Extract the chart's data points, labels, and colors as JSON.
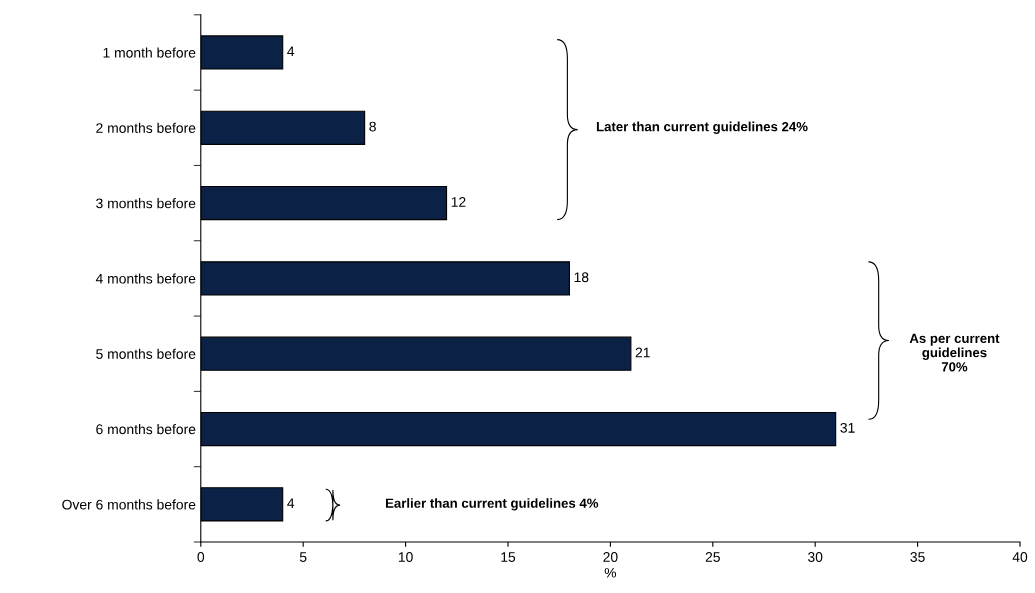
{
  "chart_data": {
    "type": "bar",
    "orientation": "horizontal",
    "categories": [
      "1 month before",
      "2 months before",
      "3 months before",
      "4 months before",
      "5 months before",
      "6 months before",
      "Over 6 months before"
    ],
    "values": [
      4,
      8,
      12,
      18,
      21,
      31,
      4
    ],
    "color": "#0c2146",
    "data_labels": true,
    "xlabel": "%",
    "xlim": [
      0,
      40
    ],
    "xticks": [
      0,
      5,
      10,
      15,
      20,
      25,
      30,
      35,
      40
    ],
    "grid": false,
    "annotations": [
      "Later than current guidelines 24%",
      "As per current\nguidelines\n70%",
      "Earlier than current guidelines 4%"
    ]
  }
}
